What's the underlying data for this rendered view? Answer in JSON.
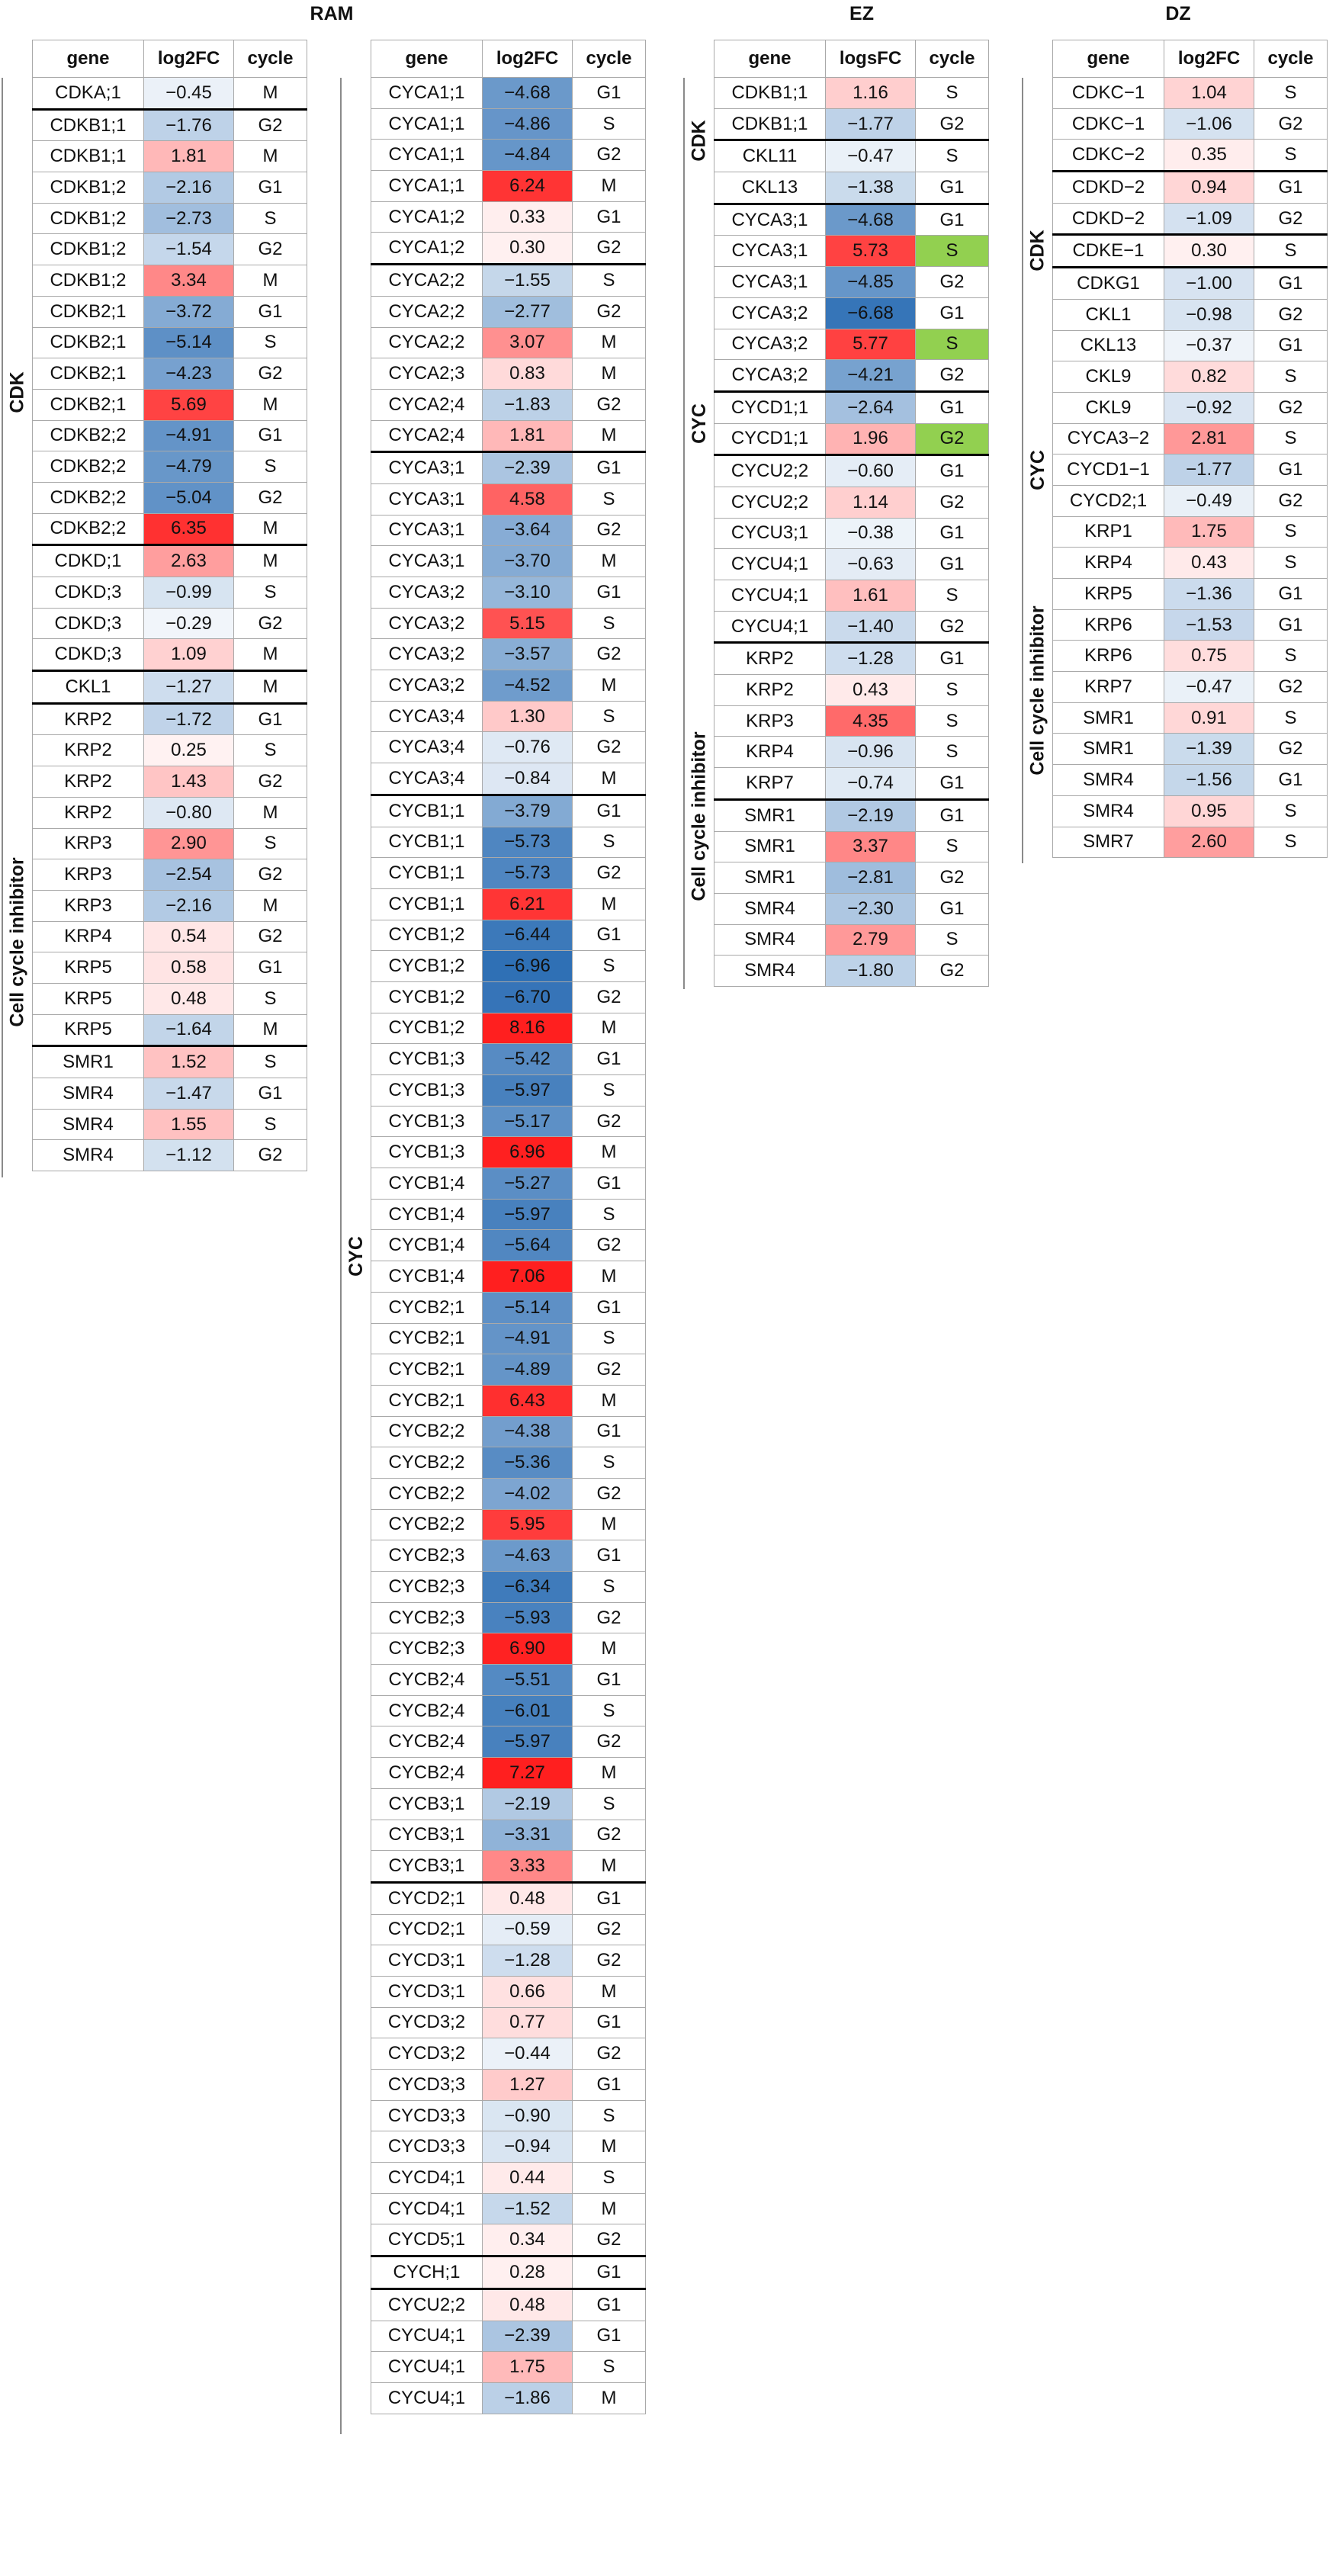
{
  "chart_data": [
    {
      "type": "table",
      "title": "RAM",
      "columns": [
        "gene",
        "log2FC",
        "cycle"
      ],
      "groups": [
        {
          "label": "CDK",
          "rows": [
            [
              "CDKA;1",
              -0.45,
              "M"
            ],
            [
              "CDKB1;1",
              -1.76,
              "G2",
              true
            ],
            [
              "CDKB1;1",
              1.81,
              "M"
            ],
            [
              "CDKB1;2",
              -2.16,
              "G1"
            ],
            [
              "CDKB1;2",
              -2.73,
              "S"
            ],
            [
              "CDKB1;2",
              -1.54,
              "G2"
            ],
            [
              "CDKB1;2",
              3.34,
              "M"
            ],
            [
              "CDKB2;1",
              -3.72,
              "G1"
            ],
            [
              "CDKB2;1",
              -5.14,
              "S"
            ],
            [
              "CDKB2;1",
              -4.23,
              "G2"
            ],
            [
              "CDKB2;1",
              5.69,
              "M"
            ],
            [
              "CDKB2;2",
              -4.91,
              "G1"
            ],
            [
              "CDKB2;2",
              -4.79,
              "S"
            ],
            [
              "CDKB2;2",
              -5.04,
              "G2"
            ],
            [
              "CDKB2;2",
              6.35,
              "M"
            ],
            [
              "CDKD;1",
              2.63,
              "M",
              true
            ],
            [
              "CDKD;3",
              -0.99,
              "S"
            ],
            [
              "CDKD;3",
              -0.29,
              "G2"
            ],
            [
              "CDKD;3",
              1.09,
              "M"
            ],
            [
              "CKL1",
              -1.27,
              "M",
              true
            ]
          ]
        },
        {
          "label": "Cell cycle inhibitor",
          "rows": [
            [
              "KRP2",
              -1.72,
              "G1",
              true
            ],
            [
              "KRP2",
              0.25,
              "S"
            ],
            [
              "KRP2",
              1.43,
              "G2"
            ],
            [
              "KRP2",
              -0.8,
              "M"
            ],
            [
              "KRP3",
              2.9,
              "S"
            ],
            [
              "KRP3",
              -2.54,
              "G2"
            ],
            [
              "KRP3",
              -2.16,
              "M"
            ],
            [
              "KRP4",
              0.54,
              "G2"
            ],
            [
              "KRP5",
              0.58,
              "G1"
            ],
            [
              "KRP5",
              0.48,
              "S"
            ],
            [
              "KRP5",
              -1.64,
              "M"
            ],
            [
              "SMR1",
              1.52,
              "S",
              true
            ],
            [
              "SMR4",
              -1.47,
              "G1"
            ],
            [
              "SMR4",
              1.55,
              "S"
            ],
            [
              "SMR4",
              -1.12,
              "G2"
            ]
          ]
        }
      ]
    },
    {
      "type": "table",
      "title": "",
      "columns": [
        "gene",
        "log2FC",
        "cycle"
      ],
      "groups": [
        {
          "label": "CYC",
          "rows": [
            [
              "CYCA1;1",
              -4.68,
              "G1"
            ],
            [
              "CYCA1;1",
              -4.86,
              "S"
            ],
            [
              "CYCA1;1",
              -4.84,
              "G2"
            ],
            [
              "CYCA1;1",
              6.24,
              "M"
            ],
            [
              "CYCA1;2",
              0.33,
              "G1"
            ],
            [
              "CYCA1;2",
              0.3,
              "G2"
            ],
            [
              "CYCA2;2",
              -1.55,
              "S",
              true
            ],
            [
              "CYCA2;2",
              -2.77,
              "G2"
            ],
            [
              "CYCA2;2",
              3.07,
              "M"
            ],
            [
              "CYCA2;3",
              0.83,
              "M"
            ],
            [
              "CYCA2;4",
              -1.83,
              "G2"
            ],
            [
              "CYCA2;4",
              1.81,
              "M"
            ],
            [
              "CYCA3;1",
              -2.39,
              "G1",
              true
            ],
            [
              "CYCA3;1",
              4.58,
              "S"
            ],
            [
              "CYCA3;1",
              -3.64,
              "G2"
            ],
            [
              "CYCA3;1",
              -3.7,
              "M"
            ],
            [
              "CYCA3;2",
              -3.1,
              "G1"
            ],
            [
              "CYCA3;2",
              5.15,
              "S"
            ],
            [
              "CYCA3;2",
              -3.57,
              "G2"
            ],
            [
              "CYCA3;2",
              -4.52,
              "M"
            ],
            [
              "CYCA3;4",
              1.3,
              "S"
            ],
            [
              "CYCA3;4",
              -0.76,
              "G2"
            ],
            [
              "CYCA3;4",
              -0.84,
              "M"
            ],
            [
              "CYCB1;1",
              -3.79,
              "G1",
              true
            ],
            [
              "CYCB1;1",
              -5.73,
              "S"
            ],
            [
              "CYCB1;1",
              -5.73,
              "G2"
            ],
            [
              "CYCB1;1",
              6.21,
              "M"
            ],
            [
              "CYCB1;2",
              -6.44,
              "G1"
            ],
            [
              "CYCB1;2",
              -6.96,
              "S"
            ],
            [
              "CYCB1;2",
              -6.7,
              "G2"
            ],
            [
              "CYCB1;2",
              8.16,
              "M"
            ],
            [
              "CYCB1;3",
              -5.42,
              "G1"
            ],
            [
              "CYCB1;3",
              -5.97,
              "S"
            ],
            [
              "CYCB1;3",
              -5.17,
              "G2"
            ],
            [
              "CYCB1;3",
              6.96,
              "M"
            ],
            [
              "CYCB1;4",
              -5.27,
              "G1"
            ],
            [
              "CYCB1;4",
              -5.97,
              "S"
            ],
            [
              "CYCB1;4",
              -5.64,
              "G2"
            ],
            [
              "CYCB1;4",
              7.06,
              "M"
            ],
            [
              "CYCB2;1",
              -5.14,
              "G1"
            ],
            [
              "CYCB2;1",
              -4.91,
              "S"
            ],
            [
              "CYCB2;1",
              -4.89,
              "G2"
            ],
            [
              "CYCB2;1",
              6.43,
              "M"
            ],
            [
              "CYCB2;2",
              -4.38,
              "G1"
            ],
            [
              "CYCB2;2",
              -5.36,
              "S"
            ],
            [
              "CYCB2;2",
              -4.02,
              "G2"
            ],
            [
              "CYCB2;2",
              5.95,
              "M"
            ],
            [
              "CYCB2;3",
              -4.63,
              "G1"
            ],
            [
              "CYCB2;3",
              -6.34,
              "S"
            ],
            [
              "CYCB2;3",
              -5.93,
              "G2"
            ],
            [
              "CYCB2;3",
              6.9,
              "M"
            ],
            [
              "CYCB2;4",
              -5.51,
              "G1"
            ],
            [
              "CYCB2;4",
              -6.01,
              "S"
            ],
            [
              "CYCB2;4",
              -5.97,
              "G2"
            ],
            [
              "CYCB2;4",
              7.27,
              "M"
            ],
            [
              "CYCB3;1",
              -2.19,
              "S"
            ],
            [
              "CYCB3;1",
              -3.31,
              "G2"
            ],
            [
              "CYCB3;1",
              3.33,
              "M"
            ],
            [
              "CYCD2;1",
              0.48,
              "G1",
              true
            ],
            [
              "CYCD2;1",
              -0.59,
              "G2"
            ],
            [
              "CYCD3;1",
              -1.28,
              "G2"
            ],
            [
              "CYCD3;1",
              0.66,
              "M"
            ],
            [
              "CYCD3;2",
              0.77,
              "G1"
            ],
            [
              "CYCD3;2",
              -0.44,
              "G2"
            ],
            [
              "CYCD3;3",
              1.27,
              "G1"
            ],
            [
              "CYCD3;3",
              -0.9,
              "S"
            ],
            [
              "CYCD3;3",
              -0.94,
              "M"
            ],
            [
              "CYCD4;1",
              0.44,
              "S"
            ],
            [
              "CYCD4;1",
              -1.52,
              "M"
            ],
            [
              "CYCD5;1",
              0.34,
              "G2"
            ],
            [
              "CYCH;1",
              0.28,
              "G1",
              true
            ],
            [
              "CYCU2;2",
              0.48,
              "G1",
              true
            ],
            [
              "CYCU4;1",
              -2.39,
              "G1"
            ],
            [
              "CYCU4;1",
              1.75,
              "S"
            ],
            [
              "CYCU4;1",
              -1.86,
              "M"
            ]
          ]
        }
      ]
    },
    {
      "type": "table",
      "title": "EZ",
      "columns": [
        "gene",
        "logsFC",
        "cycle"
      ],
      "groups": [
        {
          "label": "CDK",
          "rows": [
            [
              "CDKB1;1",
              1.16,
              "S"
            ],
            [
              "CDKB1;1",
              -1.77,
              "G2"
            ],
            [
              "CKL11",
              -0.47,
              "S",
              true
            ],
            [
              "CKL13",
              -1.38,
              "G1"
            ]
          ]
        },
        {
          "label": "CYC",
          "rows": [
            [
              "CYCA3;1",
              -4.68,
              "G1",
              true
            ],
            [
              "CYCA3;1",
              5.73,
              "S",
              false,
              true
            ],
            [
              "CYCA3;1",
              -4.85,
              "G2"
            ],
            [
              "CYCA3;2",
              -6.68,
              "G1"
            ],
            [
              "CYCA3;2",
              5.77,
              "S",
              false,
              true
            ],
            [
              "CYCA3;2",
              -4.21,
              "G2"
            ],
            [
              "CYCD1;1",
              -2.64,
              "G1",
              true
            ],
            [
              "CYCD1;1",
              1.96,
              "G2",
              false,
              true
            ],
            [
              "CYCU2;2",
              -0.6,
              "G1",
              true
            ],
            [
              "CYCU2;2",
              1.14,
              "G2"
            ],
            [
              "CYCU3;1",
              -0.38,
              "G1"
            ],
            [
              "CYCU4;1",
              -0.63,
              "G1"
            ],
            [
              "CYCU4;1",
              1.61,
              "S"
            ],
            [
              "CYCU4;1",
              -1.4,
              "G2"
            ]
          ]
        },
        {
          "label": "Cell cycle inhibitor",
          "rows": [
            [
              "KRP2",
              -1.28,
              "G1",
              true
            ],
            [
              "KRP2",
              0.43,
              "S"
            ],
            [
              "KRP3",
              4.35,
              "S"
            ],
            [
              "KRP4",
              -0.96,
              "S"
            ],
            [
              "KRP7",
              -0.74,
              "G1"
            ],
            [
              "SMR1",
              -2.19,
              "G1",
              true
            ],
            [
              "SMR1",
              3.37,
              "S"
            ],
            [
              "SMR1",
              -2.81,
              "G2"
            ],
            [
              "SMR4",
              -2.3,
              "G1"
            ],
            [
              "SMR4",
              2.79,
              "S"
            ],
            [
              "SMR4",
              -1.8,
              "G2"
            ]
          ]
        }
      ]
    },
    {
      "type": "table",
      "title": "DZ",
      "columns": [
        "gene",
        "log2FC",
        "cycle"
      ],
      "groups": [
        {
          "label": "CDK",
          "rows": [
            [
              "CDKC−1",
              1.04,
              "S"
            ],
            [
              "CDKC−1",
              -1.06,
              "G2"
            ],
            [
              "CDKC−2",
              0.35,
              "S"
            ],
            [
              "CDKD−2",
              0.94,
              "G1",
              true
            ],
            [
              "CDKD−2",
              -1.09,
              "G2"
            ],
            [
              "CDKE−1",
              0.3,
              "S",
              true
            ],
            [
              "CDKG1",
              -1.0,
              "G1",
              true
            ],
            [
              "CKL1",
              -0.98,
              "G2"
            ],
            [
              "CKL13",
              -0.37,
              "G1"
            ],
            [
              "CKL9",
              0.82,
              "S"
            ],
            [
              "CKL9",
              -0.92,
              "G2"
            ]
          ]
        },
        {
          "label": "CYC",
          "rows": [
            [
              "CYCA3−2",
              2.81,
              "S"
            ],
            [
              "CYCD1−1",
              -1.77,
              "G1"
            ],
            [
              "CYCD2;1",
              -0.49,
              "G2"
            ]
          ]
        },
        {
          "label": "Cell cycle inhibitor",
          "rows": [
            [
              "KRP1",
              1.75,
              "S"
            ],
            [
              "KRP4",
              0.43,
              "S"
            ],
            [
              "KRP5",
              -1.36,
              "G1"
            ],
            [
              "KRP6",
              -1.53,
              "G1"
            ],
            [
              "KRP6",
              0.75,
              "S"
            ],
            [
              "KRP7",
              -0.47,
              "G2"
            ],
            [
              "SMR1",
              0.91,
              "S"
            ],
            [
              "SMR1",
              -1.39,
              "G2"
            ],
            [
              "SMR4",
              -1.56,
              "G1"
            ],
            [
              "SMR4",
              0.95,
              "S"
            ],
            [
              "SMR7",
              2.6,
              "S"
            ]
          ]
        }
      ]
    }
  ],
  "colors": {
    "negative_max": "#2e6fb5",
    "positive_max": "#ff1f1f",
    "neutral": "#ffffff",
    "flag_highlight": "#92d050"
  }
}
